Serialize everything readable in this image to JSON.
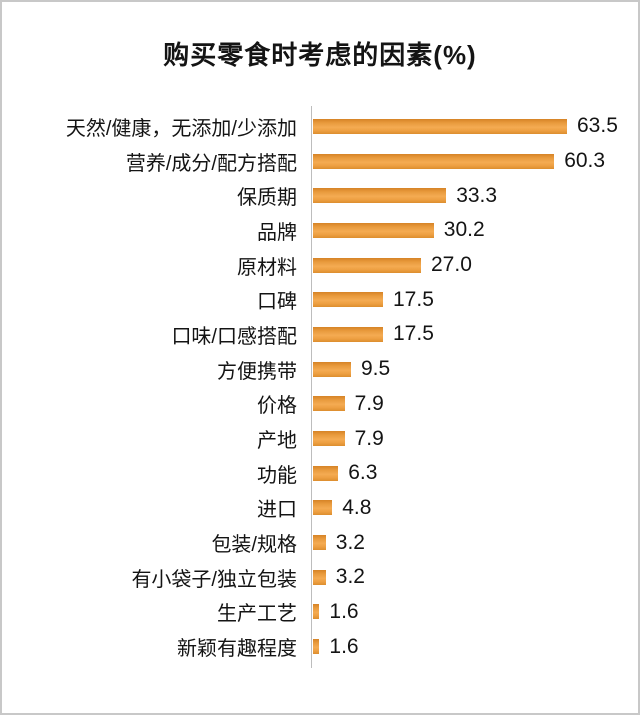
{
  "frame": {
    "background": "#FFFFFF",
    "border_color": "#C8C8C8"
  },
  "chart_data": {
    "type": "bar",
    "orientation": "horizontal",
    "title": "购买零食时考虑的因素(%)",
    "categories": [
      "天然/健康，无添加/少添加",
      "营养/成分/配方搭配",
      "保质期",
      "品牌",
      "原材料",
      "口碑",
      "口味/口感搭配",
      "方便携带",
      "价格",
      "产地",
      "功能",
      "进口",
      "包装/规格",
      "有小袋子/独立包装",
      "生产工艺",
      "新颖有趣程度"
    ],
    "values": [
      63.5,
      60.3,
      33.3,
      30.2,
      27.0,
      17.5,
      17.5,
      9.5,
      7.9,
      7.9,
      6.3,
      4.8,
      3.2,
      3.2,
      1.6,
      1.6
    ],
    "value_labels": [
      "63.5",
      "60.3",
      "33.3",
      "30.2",
      "27.0",
      "17.5",
      "17.5",
      "9.5",
      "7.9",
      "7.9",
      "6.3",
      "4.8",
      "3.2",
      "3.2",
      "1.6",
      "1.6"
    ],
    "xlabel": "",
    "ylabel": "",
    "xlim": [
      0,
      63.5
    ],
    "grid": false,
    "legend": false,
    "value_labels_position": "right-of-bar",
    "bar_color": "#ED9F42",
    "bar_gradient_top": "#D58326",
    "bar_gradient_mid": "#F4AB52",
    "axis_line_color": "#BDBDBD",
    "text_color": "#141414"
  }
}
